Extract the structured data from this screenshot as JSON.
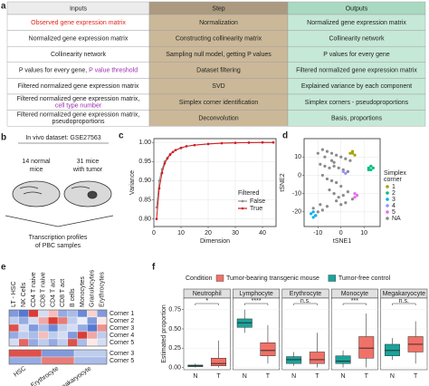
{
  "panel_a": {
    "label": "a",
    "headers": [
      "Inputs",
      "Step",
      "Outputs"
    ],
    "rows": [
      [
        [
          [
            {
              "text": "Observed gene expression matrix",
              "color": "#e0261b"
            }
          ]
        ],
        [
          [
            {
              "text": "Normalization"
            }
          ]
        ],
        [
          [
            {
              "text": "Normalized gene expression matrix"
            }
          ]
        ]
      ],
      [
        [
          [
            {
              "text": "Normalized gene expression matrix"
            }
          ]
        ],
        [
          [
            {
              "text": "Constructing collinearity matrix"
            }
          ]
        ],
        [
          [
            {
              "text": "Collinearity network"
            }
          ]
        ]
      ],
      [
        [
          [
            {
              "text": "Collinearity network"
            }
          ]
        ],
        [
          [
            {
              "text": "Sampling null model, getting P values"
            }
          ]
        ],
        [
          [
            {
              "text": "P values for every gene"
            }
          ]
        ]
      ],
      [
        [
          [
            {
              "text": "P values for every gene, "
            },
            {
              "text": "P value threshold",
              "color": "#9b2fae"
            }
          ]
        ],
        [
          [
            {
              "text": "Dataset filtering"
            }
          ]
        ],
        [
          [
            {
              "text": "Filtered normalized gene expression matrix"
            }
          ]
        ]
      ],
      [
        [
          [
            {
              "text": "Filtered normalized gene expression matrix"
            }
          ]
        ],
        [
          [
            {
              "text": "SVD"
            }
          ]
        ],
        [
          [
            {
              "text": "Explained variance by each component"
            }
          ]
        ]
      ],
      [
        [
          [
            {
              "text": "Filtered normalized gene expression matrix,"
            }
          ],
          [
            {
              "text": "cell type number",
              "color": "#9b2fae"
            }
          ]
        ],
        [
          [
            {
              "text": "Simplex corner identification"
            }
          ]
        ],
        [
          [
            {
              "text": "Simplex corners - pseudoproportions"
            }
          ]
        ]
      ],
      [
        [
          [
            {
              "text": "Filtered normalized gene expression matrix,"
            }
          ],
          [
            {
              "text": "pseudoproportions"
            }
          ]
        ],
        [
          [
            {
              "text": "Deconvolution"
            }
          ]
        ],
        [
          [
            {
              "text": "Basis, proportions"
            }
          ]
        ]
      ]
    ]
  },
  "panel_b": {
    "label": "b",
    "title": "In vivo dataset: GSE27563",
    "group_labels": [
      [
        "14 normal",
        "mice"
      ],
      [
        "31 mice",
        "with tumor"
      ]
    ],
    "caption": [
      "Transcription profiles",
      "of PBC samples"
    ]
  },
  "chart_data": [
    {
      "type": "line",
      "label": "c",
      "x_label": "Dimension",
      "y_label": "Variance",
      "xlim": [
        0,
        45
      ],
      "xticks": [
        0,
        10,
        20,
        30,
        40
      ],
      "ylim": [
        0.78,
        1.01
      ],
      "yticks": [
        {
          "value": 0.8,
          "label": "0.80"
        },
        {
          "value": 0.85,
          "label": "0.85"
        },
        {
          "value": 0.9,
          "label": "0.90"
        },
        {
          "value": 0.95,
          "label": "0.95"
        },
        {
          "value": 1,
          "label": "1.00"
        }
      ],
      "grid": true,
      "legend_title": "Filtered",
      "x": [
        1,
        2,
        3,
        4,
        5,
        6,
        7,
        8,
        10,
        12,
        15,
        20,
        25,
        30,
        35,
        40,
        44
      ],
      "series": [
        {
          "name": "False",
          "color": "#8c8c8c",
          "values": [
            0.83,
            0.9,
            0.93,
            0.95,
            0.96,
            0.97,
            0.975,
            0.98,
            0.985,
            0.99,
            0.993,
            0.996,
            0.998,
            0.999,
            0.9995,
            1.0,
            1.0
          ]
        },
        {
          "name": "True",
          "color": "#d7191c",
          "values": [
            0.8,
            0.88,
            0.92,
            0.945,
            0.958,
            0.968,
            0.975,
            0.98,
            0.986,
            0.99,
            0.993,
            0.996,
            0.998,
            0.999,
            0.9995,
            1.0,
            1.0
          ]
        }
      ]
    },
    {
      "type": "scatter",
      "label": "d",
      "x_label": "tSNE1",
      "y_label": "tSNE2",
      "xlim": [
        -16,
        17
      ],
      "xticks": [
        -10,
        0,
        10
      ],
      "ylim": [
        -28,
        20
      ],
      "yticks": [
        -20,
        -10,
        0,
        10
      ],
      "grid": true,
      "legend_title": [
        "Simplex",
        "corner"
      ],
      "series": [
        {
          "name": "1",
          "color": "#a3a500",
          "x": [
            4,
            5,
            6,
            5
          ],
          "values": [
            12,
            13,
            11,
            12
          ]
        },
        {
          "name": "2",
          "color": "#00bf7d",
          "x": [
            12,
            13,
            14,
            13,
            12
          ],
          "values": [
            4,
            5,
            4,
            3,
            3
          ]
        },
        {
          "name": "3",
          "color": "#00b0f6",
          "x": [
            -13,
            -12,
            -11,
            -12
          ],
          "values": [
            -21,
            -20,
            -22,
            -23
          ]
        },
        {
          "name": "4",
          "color": "#9590ff",
          "x": [
            1,
            2
          ],
          "values": [
            2,
            1
          ]
        },
        {
          "name": "5",
          "color": "#e76bf3",
          "x": [
            6,
            7,
            6
          ],
          "values": [
            -10,
            -11,
            -12
          ]
        },
        {
          "name": "NA",
          "color": "#8a8a8a",
          "x": [
            -10,
            -8,
            -6,
            -4,
            -2,
            0,
            2,
            4,
            -9,
            -7,
            -5,
            -3,
            -1,
            1,
            3,
            -8,
            -6,
            -4,
            -2,
            0,
            -5,
            -3,
            -1,
            1,
            -2,
            0,
            2,
            -12,
            -10,
            -11,
            -8,
            -6,
            -9,
            -4,
            3,
            5,
            -7,
            -3
          ],
          "values": [
            12,
            14,
            13,
            12,
            11,
            10,
            9,
            8,
            6,
            5,
            4,
            5,
            4,
            3,
            2,
            0,
            -2,
            -3,
            -4,
            -6,
            -8,
            -10,
            -12,
            -11,
            -14,
            -16,
            -15,
            -18,
            -20,
            -22,
            -19,
            -17,
            -16,
            8,
            -9,
            -13,
            10,
            7
          ]
        }
      ]
    },
    {
      "type": "heatmap",
      "label": "e",
      "color_scale": [
        "#2b57c4",
        "#ffffff",
        "#d7261e"
      ],
      "vlim": [
        -1,
        1
      ],
      "blocks": [
        {
          "columns": [
            "LT - HSC",
            "NK Cells",
            "CD4 T naive",
            "CD8 T naive",
            "CD4 T act",
            "CD8 T act",
            "B cells",
            "Monocytes",
            "Granulocytes",
            "Erythrocytes"
          ],
          "rows": [
            "Corner 1",
            "Corner 2",
            "Corner 3",
            "Corner 4",
            "Corner 5"
          ],
          "values": [
            [
              -0.6,
              -0.8,
              0.9,
              -0.2,
              0.3,
              -0.5,
              -0.4,
              -0.7,
              0.2,
              -0.6
            ],
            [
              -0.3,
              -0.5,
              -0.2,
              0.4,
              0.9,
              0.6,
              -0.3,
              -0.1,
              -0.6,
              0.1
            ],
            [
              0.8,
              -0.2,
              -0.6,
              -0.4,
              -0.7,
              -0.3,
              -0.2,
              -0.5,
              -0.8,
              0.5
            ],
            [
              -0.5,
              -0.3,
              -0.4,
              0.3,
              -0.3,
              -0.2,
              -0.6,
              0.9,
              0.4,
              -0.3
            ],
            [
              -0.2,
              0.7,
              -0.5,
              -0.3,
              -0.5,
              -0.3,
              0.8,
              -0.4,
              0.1,
              -0.2
            ]
          ]
        },
        {
          "columns": [
            "HSC",
            "Erythrocyte",
            "Megakaryocyte"
          ],
          "rows": [
            "Corner 3",
            "Corner 5"
          ],
          "values": [
            [
              0.8,
              -0.6,
              -0.3
            ],
            [
              -0.5,
              0.6,
              -0.4
            ]
          ]
        }
      ]
    },
    {
      "type": "box",
      "label": "f",
      "y_label": "Estimated proportion",
      "legend_title": "Condition",
      "facets": [
        "Neutrophil",
        "Lymphocyte",
        "Erythrocyte",
        "Monocyte",
        "Megakaryocyte"
      ],
      "groups": [
        "N",
        "T"
      ],
      "significance": [
        "*",
        "****",
        "n.s.",
        "***",
        "n.s."
      ],
      "ylim": [
        -0.03,
        0.9
      ],
      "yticks": [
        {
          "value": 0,
          "label": "0.00"
        },
        {
          "value": 0.25,
          "label": "0.25"
        },
        {
          "value": 0.5,
          "label": "0.50"
        },
        {
          "value": 0.75,
          "label": "0.75"
        }
      ],
      "series": [
        {
          "name": "Tumor-bearing transgenic mouse",
          "color": "#f07167",
          "group": "T",
          "values": [
            [
              0,
              0.02,
              0.05,
              0.12,
              0.35
            ],
            [
              0.05,
              0.15,
              0.22,
              0.32,
              0.55
            ],
            [
              0,
              0.05,
              0.1,
              0.2,
              0.45
            ],
            [
              0,
              0.12,
              0.25,
              0.4,
              0.7
            ],
            [
              0.05,
              0.2,
              0.3,
              0.4,
              0.6
            ]
          ]
        },
        {
          "name": "Tumor-free control",
          "color": "#1aa39a",
          "group": "N",
          "values": [
            [
              0,
              0.01,
              0.02,
              0.03,
              0.05
            ],
            [
              0.45,
              0.52,
              0.58,
              0.63,
              0.75
            ],
            [
              0.02,
              0.05,
              0.1,
              0.14,
              0.2
            ],
            [
              0,
              0.05,
              0.08,
              0.15,
              0.22
            ],
            [
              0.1,
              0.15,
              0.22,
              0.3,
              0.38
            ]
          ]
        }
      ]
    }
  ]
}
